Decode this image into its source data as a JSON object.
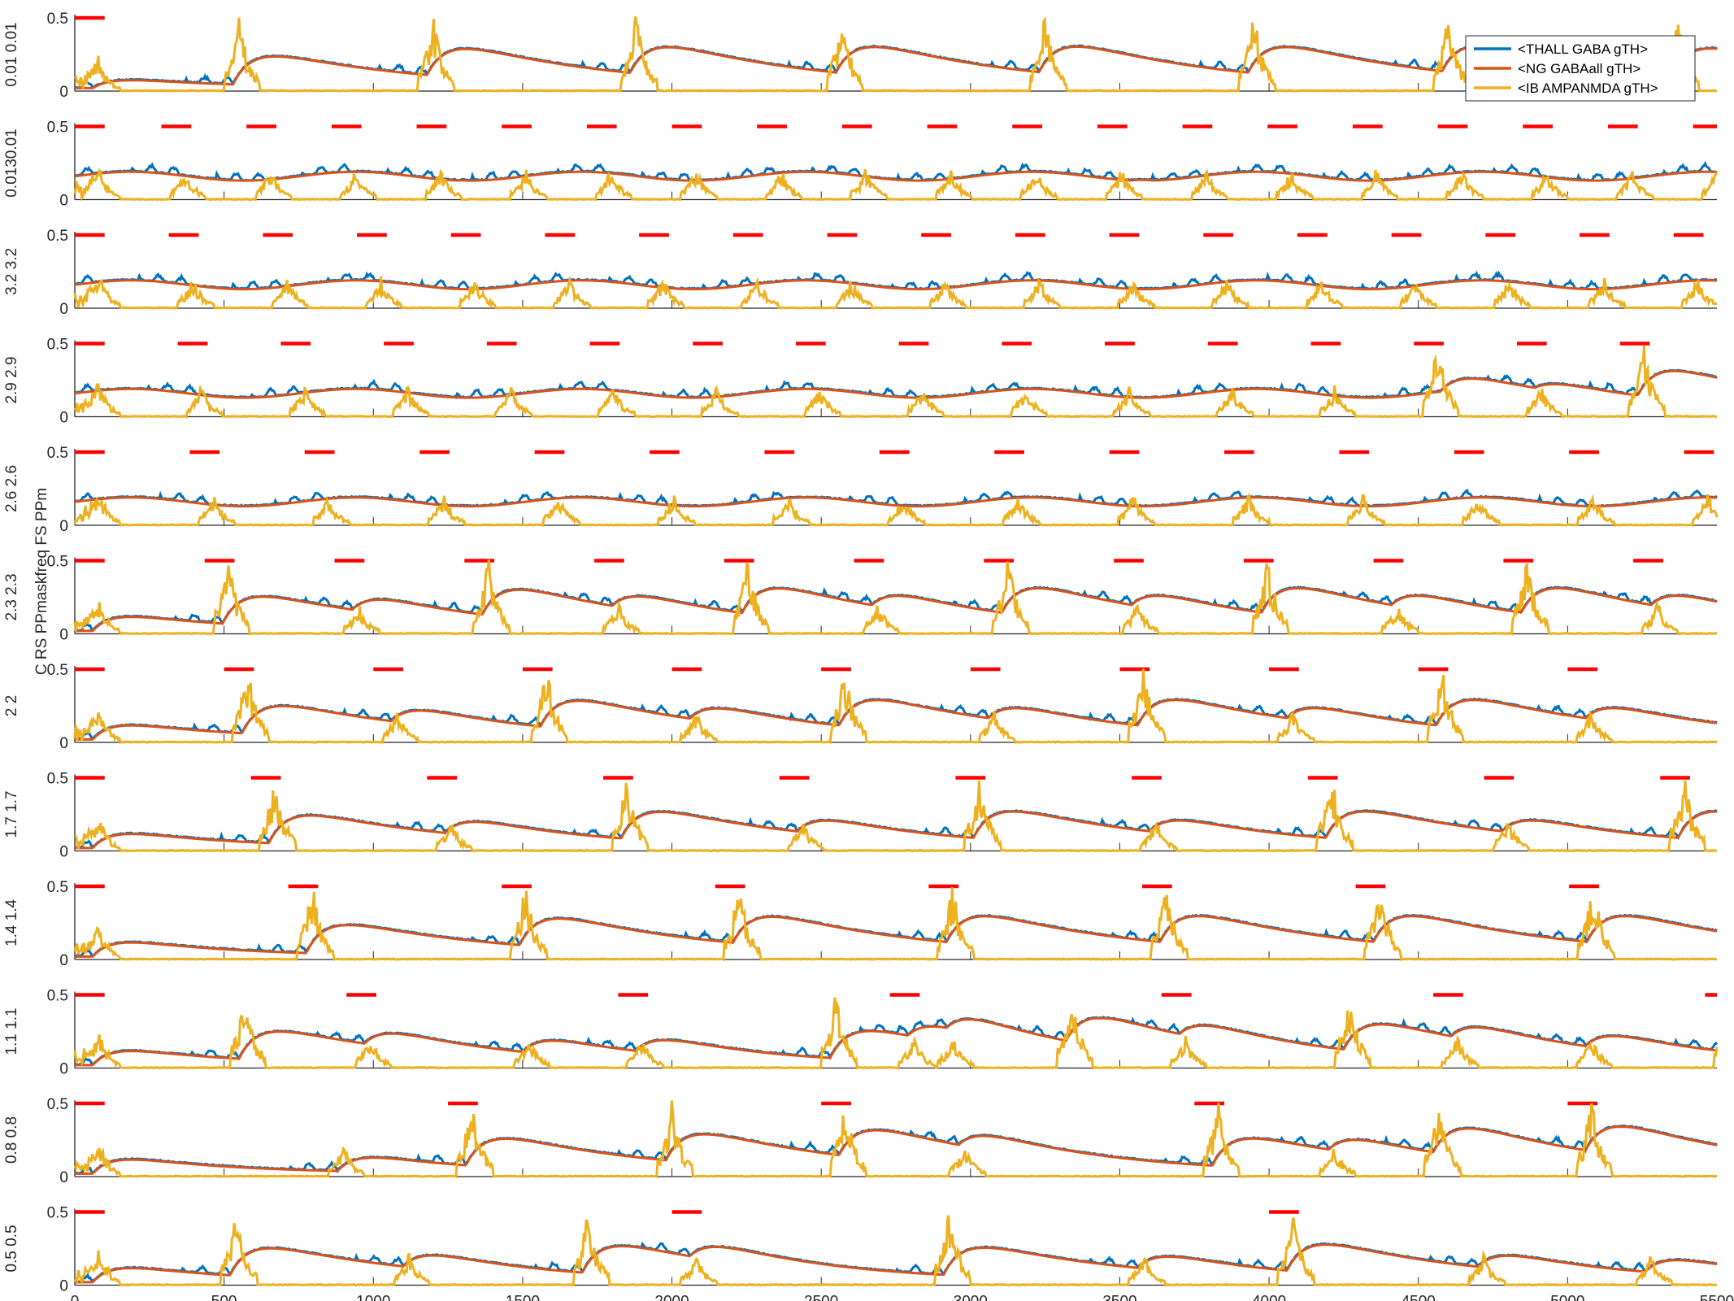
{
  "figure": {
    "ylabel": "C RS PPmaskfreq FS PPm",
    "panel_side_labels": [
      "0.01 0.01",
      "0.0130.01",
      "3.2 3.2",
      "2.9 2.9",
      "2.6 2.6",
      "2.3 2.3",
      "2 2",
      "1.7 1.7",
      "1.4 1.4",
      "1.1 1.1",
      "0.8 0.8",
      "0.5 0.5"
    ]
  },
  "legend": {
    "entries": [
      {
        "label": "<THALL GABA gTH>",
        "color": "#0072BD"
      },
      {
        "label": "<NG GABAall gTH>",
        "color": "#D95319"
      },
      {
        "label": "<IB AMPANMDA gTH>",
        "color": "#EDB120"
      }
    ],
    "placement": "top-right (first panel)"
  },
  "chart_data": {
    "type": "line",
    "layout": "12 vertically stacked panels sharing x axis",
    "xlim": [
      0,
      5500
    ],
    "ylim": [
      0,
      0.5
    ],
    "x_ticks": [
      "0",
      "500",
      "1000",
      "1500",
      "2000",
      "2500",
      "3000",
      "3500",
      "4000",
      "4500",
      "5000",
      "5500"
    ],
    "y_ticks": [
      "0",
      "0.5"
    ],
    "stimulus_color": "#FF0000",
    "stimulus_bar_duration_ms": 100,
    "series_colors": {
      "THALL": "#0072BD",
      "NG": "#D95319",
      "IB": "#EDB120"
    },
    "panels": [
      {
        "stim_onsets": [
          0
        ],
        "bursts": [
          530,
          1180,
          1860,
          2550,
          3230,
          3930,
          4580,
          5350
        ],
        "big": [
          530,
          1180,
          1860,
          2550,
          3230,
          3930,
          4580,
          5350
        ]
      },
      {
        "stim_onsets": [
          0,
          290,
          575,
          860,
          1145,
          1430,
          1715,
          2000,
          2285,
          2570,
          2855,
          3140,
          3425,
          3710,
          3995,
          4280,
          4565,
          4850,
          5135,
          5420
        ],
        "bursts": [],
        "big": []
      },
      {
        "stim_onsets": [
          0,
          315,
          630,
          945,
          1260,
          1575,
          1890,
          2205,
          2520,
          2835,
          3150,
          3465,
          3780,
          4095,
          4410,
          4725,
          5040,
          5355
        ],
        "bursts": [],
        "big": []
      },
      {
        "stim_onsets": [
          0,
          345,
          690,
          1035,
          1380,
          1725,
          2070,
          2415,
          2760,
          3105,
          3450,
          3795,
          4140,
          4485,
          4830,
          5175
        ],
        "bursts": [],
        "big": [
          4530,
          5220
        ]
      },
      {
        "stim_onsets": [
          0,
          385,
          770,
          1155,
          1540,
          1925,
          2310,
          2695,
          3080,
          3465,
          3850,
          4235,
          4620,
          5005,
          5390
        ],
        "bursts": [],
        "big": []
      },
      {
        "stim_onsets": [
          0,
          435,
          870,
          1305,
          1740,
          2175,
          2610,
          3045,
          3480,
          3915,
          4350,
          4785,
          5220
        ],
        "bursts": [],
        "big": [
          435,
          1305,
          2175,
          3045,
          3915,
          4785
        ]
      },
      {
        "stim_onsets": [
          0,
          500,
          1000,
          1500,
          2000,
          2500,
          3000,
          3500,
          4000,
          4500,
          5000
        ],
        "bursts": [],
        "big": [
          500,
          1500,
          2500,
          3500,
          4500
        ]
      },
      {
        "stim_onsets": [
          0,
          590,
          1180,
          1770,
          2360,
          2950,
          3540,
          4130,
          4720,
          5310
        ],
        "bursts": [],
        "big": [
          590,
          1770,
          2950,
          4130,
          5310
        ]
      },
      {
        "stim_onsets": [
          0,
          715,
          1430,
          2145,
          2860,
          3575,
          4290,
          5005
        ],
        "bursts": [],
        "big": [
          715,
          1430,
          2145,
          2860,
          3575,
          4290,
          5005
        ]
      },
      {
        "stim_onsets": [
          0,
          910,
          1820,
          2730,
          3640,
          4550,
          5460
        ],
        "bursts": [
          550,
          940,
          1500,
          1880,
          2530,
          2920,
          3320,
          3720,
          4250,
          4570,
          5060,
          5480
        ],
        "big": [
          550,
          2530,
          3320,
          4250,
          5480
        ]
      },
      {
        "stim_onsets": [
          0,
          1250,
          2500,
          3750,
          5000
        ],
        "bursts": [
          880,
          1980,
          2960,
          4200,
          4550
        ],
        "big": [
          1250,
          1980,
          2500,
          3750,
          4550,
          5000
        ]
      },
      {
        "stim_onsets": [
          0,
          2000,
          4000
        ],
        "bursts": [
          520,
          1100,
          1700,
          2910,
          3560,
          4700,
          5260
        ],
        "big": [
          520,
          1700,
          2910,
          4000
        ]
      }
    ]
  }
}
